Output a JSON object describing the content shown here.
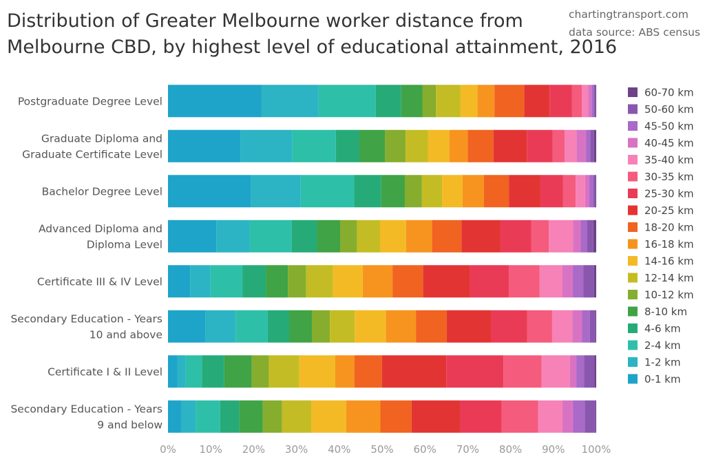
{
  "header": {
    "title_lines": [
      "Distribution of Greater Melbourne worker distance from",
      "Melbourne CBD, by highest level of educational attainment, 2016"
    ],
    "credit_lines": [
      "chartingtransport.com",
      "data source: ABS census"
    ]
  },
  "chart_data": {
    "type": "bar",
    "orientation": "horizontal",
    "stacked": true,
    "normalized": "percent",
    "title": "Distribution of Greater Melbourne worker distance from Melbourne CBD, by highest level of educational attainment, 2016",
    "xlim": [
      0,
      100
    ],
    "xticks": [
      "0%",
      "10%",
      "20%",
      "30%",
      "40%",
      "50%",
      "60%",
      "70%",
      "80%",
      "90%",
      "100%"
    ],
    "grid": false,
    "legend_position": "right",
    "categories": [
      [
        "Postgraduate Degree Level"
      ],
      [
        "Graduate Diploma and",
        "Graduate Certificate Level"
      ],
      [
        "Bachelor Degree Level"
      ],
      [
        "Advanced Diploma and",
        "Diploma Level"
      ],
      [
        "Certificate III & IV Level"
      ],
      [
        "Secondary Education - Years",
        "10 and above"
      ],
      [
        "Certificate I & II Level"
      ],
      [
        "Secondary Education - Years",
        "9 and below"
      ]
    ],
    "series": [
      {
        "name": "0-1 km",
        "color": "#1ea4c8",
        "values": [
          22.0,
          17.0,
          19.3,
          11.5,
          5.2,
          8.8,
          2.2,
          3.2
        ]
      },
      {
        "name": "1-2 km",
        "color": "#2cb4c4",
        "values": [
          13.5,
          12.0,
          11.7,
          8.0,
          4.8,
          7.0,
          2.0,
          3.3
        ]
      },
      {
        "name": "2-4 km",
        "color": "#2ebfa9",
        "values": [
          13.5,
          10.2,
          12.5,
          10.0,
          7.5,
          7.5,
          3.8,
          5.7
        ]
      },
      {
        "name": "4-6 km",
        "color": "#26ab78",
        "values": [
          6.0,
          5.5,
          6.3,
          6.0,
          5.5,
          5.0,
          5.3,
          4.5
        ]
      },
      {
        "name": "8-10 km",
        "color": "#40a345",
        "values": [
          5.0,
          6.0,
          5.5,
          5.5,
          5.2,
          5.3,
          6.5,
          5.5
        ]
      },
      {
        "name": "10-12 km",
        "color": "#86ad2d",
        "values": [
          3.2,
          4.8,
          4.0,
          4.0,
          4.3,
          4.2,
          4.0,
          4.5
        ]
      },
      {
        "name": "12-14 km",
        "color": "#c4bc24",
        "values": [
          5.8,
          5.2,
          4.7,
          5.5,
          6.3,
          5.8,
          7.2,
          6.8
        ]
      },
      {
        "name": "14-16 km",
        "color": "#f3ba26",
        "values": [
          4.0,
          5.0,
          4.8,
          6.2,
          7.0,
          7.3,
          8.5,
          8.2
        ]
      },
      {
        "name": "16-18 km",
        "color": "#f7941f",
        "values": [
          4.0,
          4.3,
          5.0,
          6.2,
          7.0,
          7.0,
          4.5,
          8.0
        ]
      },
      {
        "name": "18-20 km",
        "color": "#f06321",
        "values": [
          7.0,
          6.0,
          5.8,
          7.0,
          7.2,
          7.2,
          6.5,
          7.3
        ]
      },
      {
        "name": "20-25 km",
        "color": "#e23533",
        "values": [
          6.0,
          7.8,
          7.3,
          9.3,
          11.0,
          10.3,
          15.2,
          11.3
        ]
      },
      {
        "name": "25-30 km",
        "color": "#ea3b56",
        "values": [
          5.3,
          6.0,
          5.3,
          7.3,
          9.2,
          8.5,
          13.5,
          9.8
        ]
      },
      {
        "name": "30-35 km",
        "color": "#f45b7c",
        "values": [
          2.3,
          2.8,
          3.0,
          4.2,
          7.2,
          5.8,
          9.0,
          8.5
        ]
      },
      {
        "name": "35-40 km",
        "color": "#f682b7",
        "values": [
          1.5,
          2.8,
          2.2,
          5.8,
          5.3,
          4.7,
          6.7,
          5.7
        ]
      },
      {
        "name": "40-45 km",
        "color": "#d873c4",
        "values": [
          0.8,
          2.2,
          1.0,
          1.8,
          2.5,
          2.3,
          1.5,
          2.5
        ]
      },
      {
        "name": "45-50 km",
        "color": "#a96ac8",
        "values": [
          0.5,
          1.0,
          0.9,
          1.5,
          2.5,
          1.8,
          1.8,
          2.7
        ]
      },
      {
        "name": "50-60 km",
        "color": "#8957ad",
        "values": [
          0.4,
          0.9,
          0.5,
          1.5,
          2.5,
          1.3,
          2.5,
          2.5
        ]
      },
      {
        "name": "60-70 km",
        "color": "#6e4287",
        "values": [
          0.2,
          0.5,
          0.2,
          0.7,
          0.5,
          0.2,
          0.4,
          0.2
        ]
      }
    ]
  }
}
